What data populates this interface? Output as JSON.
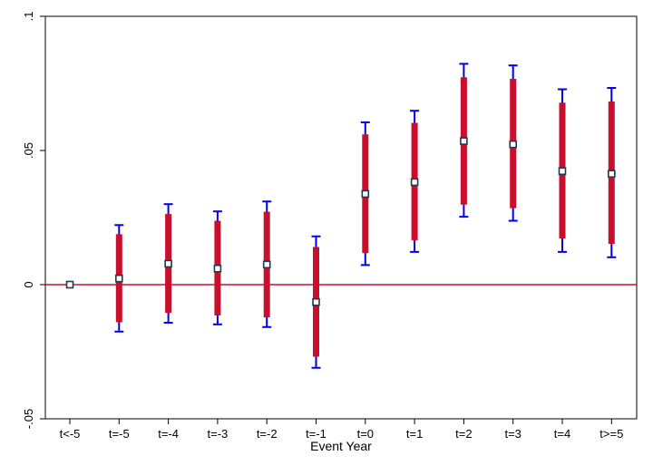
{
  "chart_data": {
    "type": "scatter",
    "title": "",
    "xlabel": "Event Year",
    "ylabel": "",
    "categories": [
      "t<-5",
      "t=-5",
      "t=-4",
      "t=-3",
      "t=-2",
      "t=-1",
      "t=0",
      "t=1",
      "t=2",
      "t=3",
      "t=4",
      "t>=5"
    ],
    "point_estimates": [
      0,
      0.0023,
      0.0078,
      0.006,
      0.0075,
      -0.0065,
      0.0338,
      0.0382,
      0.0535,
      0.0523,
      0.0423,
      0.0413
    ],
    "ci95_low": [
      0,
      -0.0175,
      -0.0142,
      -0.0148,
      -0.0158,
      -0.031,
      0.0073,
      0.0122,
      0.0253,
      0.0238,
      0.0122,
      0.0102
    ],
    "ci95_high": [
      0,
      0.0222,
      0.03,
      0.0273,
      0.031,
      0.018,
      0.0605,
      0.0648,
      0.0823,
      0.0817,
      0.0728,
      0.0733
    ],
    "ci90_low": [
      0,
      -0.014,
      -0.0105,
      -0.0115,
      -0.0122,
      -0.0268,
      0.0118,
      0.0165,
      0.0298,
      0.0285,
      0.0172,
      0.0152
    ],
    "ci90_high": [
      0,
      0.0188,
      0.0263,
      0.0238,
      0.0272,
      0.014,
      0.056,
      0.0603,
      0.0773,
      0.0767,
      0.0678,
      0.0683
    ],
    "ylim": [
      -0.05,
      0.1
    ],
    "yticks": [
      -0.05,
      0,
      0.05,
      0.1
    ],
    "ytick_labels": [
      "-.05",
      "0",
      ".05",
      ".1"
    ],
    "reference_line_y": 0,
    "grid": false,
    "legend": "none",
    "colors": {
      "ci95": "#0000ee",
      "ci90": "#c8102e",
      "reference_line": "#c8102e",
      "marker_edge": "#1f3b4d",
      "marker_fill": "#ffffff"
    }
  }
}
